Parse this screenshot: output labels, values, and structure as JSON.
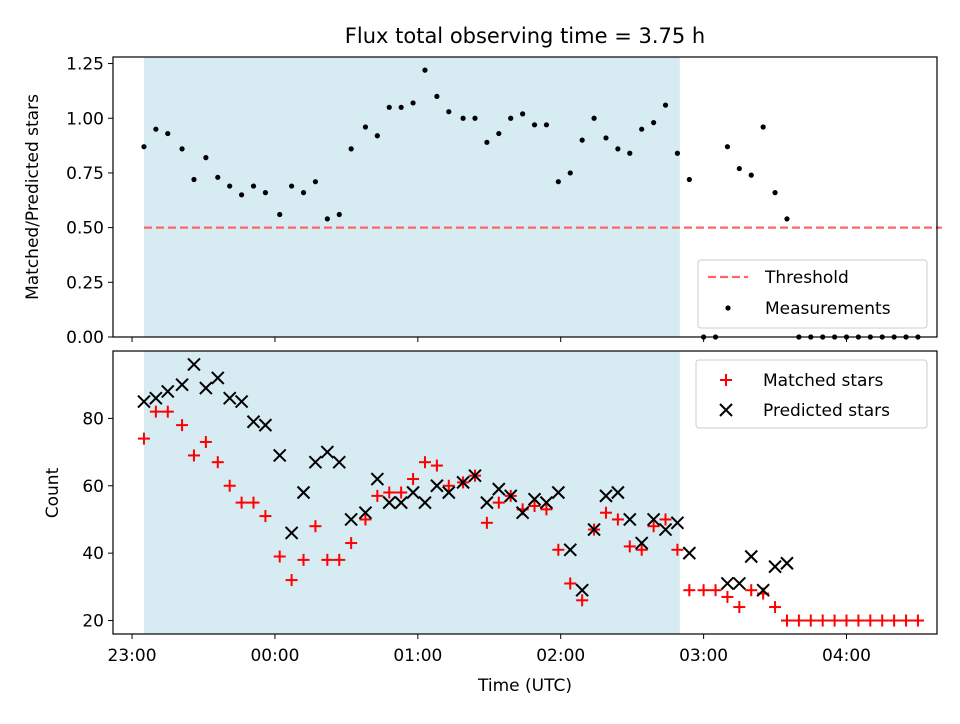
{
  "title": "Flux total observing time = 3.75 h",
  "xlabel": "Time (UTC)",
  "x_ticks": [
    "23:00",
    "00:00",
    "01:00",
    "02:00",
    "03:00",
    "04:00"
  ],
  "colors": {
    "shade": "#ADD8E6",
    "threshold": "#ff6666",
    "matched": "#ff0000",
    "measurement": "#000000",
    "predicted": "#000000"
  },
  "chart_data": [
    {
      "type": "scatter",
      "ylabel": "Matched/Predicted stars",
      "xlim": [
        "22:52",
        "04:38"
      ],
      "ylim": [
        0,
        1.28
      ],
      "y_ticks": [
        "0.00",
        "0.25",
        "0.50",
        "0.75",
        "1.00",
        "1.25"
      ],
      "shaded_interval": [
        "23:05",
        "02:50"
      ],
      "threshold": {
        "name": "Threshold",
        "value": 0.5,
        "x_range": [
          "23:05",
          "04:40"
        ]
      },
      "legend": {
        "position": "lower-right",
        "entries": [
          "Threshold",
          "Measurements"
        ]
      },
      "series": [
        {
          "name": "Measurements",
          "points": [
            [
              "23:05",
              0.87
            ],
            [
              "23:10",
              0.95
            ],
            [
              "23:15",
              0.93
            ],
            [
              "23:21",
              0.86
            ],
            [
              "23:26",
              0.72
            ],
            [
              "23:31",
              0.82
            ],
            [
              "23:36",
              0.73
            ],
            [
              "23:41",
              0.69
            ],
            [
              "23:46",
              0.65
            ],
            [
              "23:51",
              0.69
            ],
            [
              "23:56",
              0.66
            ],
            [
              "00:02",
              0.56
            ],
            [
              "00:07",
              0.69
            ],
            [
              "00:12",
              0.66
            ],
            [
              "00:17",
              0.71
            ],
            [
              "00:22",
              0.54
            ],
            [
              "00:27",
              0.56
            ],
            [
              "00:32",
              0.86
            ],
            [
              "00:38",
              0.96
            ],
            [
              "00:43",
              0.92
            ],
            [
              "00:48",
              1.05
            ],
            [
              "00:53",
              1.05
            ],
            [
              "00:58",
              1.07
            ],
            [
              "01:03",
              1.22
            ],
            [
              "01:08",
              1.1
            ],
            [
              "01:13",
              1.03
            ],
            [
              "01:19",
              1.0
            ],
            [
              "01:24",
              1.0
            ],
            [
              "01:29",
              0.89
            ],
            [
              "01:34",
              0.93
            ],
            [
              "01:39",
              1.0
            ],
            [
              "01:44",
              1.02
            ],
            [
              "01:49",
              0.97
            ],
            [
              "01:54",
              0.97
            ],
            [
              "01:59",
              0.71
            ],
            [
              "02:04",
              0.75
            ],
            [
              "02:09",
              0.9
            ],
            [
              "02:14",
              1.0
            ],
            [
              "02:19",
              0.91
            ],
            [
              "02:24",
              0.86
            ],
            [
              "02:29",
              0.84
            ],
            [
              "02:34",
              0.95
            ],
            [
              "02:39",
              0.98
            ],
            [
              "02:44",
              1.06
            ],
            [
              "02:49",
              0.84
            ],
            [
              "02:54",
              0.72
            ],
            [
              "03:00",
              0.0
            ],
            [
              "03:05",
              0.0
            ],
            [
              "03:10",
              0.87
            ],
            [
              "03:15",
              0.77
            ],
            [
              "03:20",
              0.74
            ],
            [
              "03:25",
              0.96
            ],
            [
              "03:30",
              0.66
            ],
            [
              "03:35",
              0.54
            ],
            [
              "03:40",
              0.0
            ],
            [
              "03:45",
              0.0
            ],
            [
              "03:50",
              0.0
            ],
            [
              "03:55",
              0.0
            ],
            [
              "04:00",
              0.0
            ],
            [
              "04:05",
              0.0
            ],
            [
              "04:10",
              0.0
            ],
            [
              "04:15",
              0.0
            ],
            [
              "04:20",
              0.0
            ],
            [
              "04:25",
              0.0
            ],
            [
              "04:30",
              0.0
            ]
          ]
        }
      ]
    },
    {
      "type": "scatter",
      "ylabel": "Count",
      "xlim": [
        "22:52",
        "04:38"
      ],
      "ylim": [
        16,
        100
      ],
      "y_ticks": [
        "20",
        "40",
        "60",
        "80"
      ],
      "shaded_interval": [
        "23:05",
        "02:50"
      ],
      "legend": {
        "position": "top-right",
        "entries": [
          "Matched stars",
          "Predicted stars"
        ]
      },
      "series": [
        {
          "name": "Matched stars",
          "points": [
            [
              "23:05",
              74
            ],
            [
              "23:10",
              82
            ],
            [
              "23:15",
              82
            ],
            [
              "23:21",
              78
            ],
            [
              "23:26",
              69
            ],
            [
              "23:31",
              73
            ],
            [
              "23:36",
              67
            ],
            [
              "23:41",
              60
            ],
            [
              "23:46",
              55
            ],
            [
              "23:51",
              55
            ],
            [
              "23:56",
              51
            ],
            [
              "00:02",
              39
            ],
            [
              "00:07",
              32
            ],
            [
              "00:12",
              38
            ],
            [
              "00:17",
              48
            ],
            [
              "00:22",
              38
            ],
            [
              "00:27",
              38
            ],
            [
              "00:32",
              43
            ],
            [
              "00:38",
              50
            ],
            [
              "00:43",
              57
            ],
            [
              "00:48",
              58
            ],
            [
              "00:53",
              58
            ],
            [
              "00:58",
              62
            ],
            [
              "01:03",
              67
            ],
            [
              "01:08",
              66
            ],
            [
              "01:13",
              60
            ],
            [
              "01:19",
              61
            ],
            [
              "01:24",
              63
            ],
            [
              "01:29",
              49
            ],
            [
              "01:34",
              55
            ],
            [
              "01:39",
              57
            ],
            [
              "01:44",
              53
            ],
            [
              "01:49",
              54
            ],
            [
              "01:54",
              53
            ],
            [
              "01:59",
              41
            ],
            [
              "02:04",
              31
            ],
            [
              "02:09",
              26
            ],
            [
              "02:14",
              47
            ],
            [
              "02:19",
              52
            ],
            [
              "02:24",
              50
            ],
            [
              "02:29",
              42
            ],
            [
              "02:34",
              41
            ],
            [
              "02:39",
              48
            ],
            [
              "02:44",
              50
            ],
            [
              "02:49",
              41
            ],
            [
              "02:54",
              29
            ],
            [
              "03:00",
              29
            ],
            [
              "03:05",
              29
            ],
            [
              "03:10",
              27
            ],
            [
              "03:15",
              24
            ],
            [
              "03:20",
              29
            ],
            [
              "03:25",
              28
            ],
            [
              "03:30",
              24
            ],
            [
              "03:35",
              20
            ],
            [
              "03:40",
              20
            ],
            [
              "03:45",
              20
            ],
            [
              "03:50",
              20
            ],
            [
              "03:55",
              20
            ],
            [
              "04:00",
              20
            ],
            [
              "04:05",
              20
            ],
            [
              "04:10",
              20
            ],
            [
              "04:15",
              20
            ],
            [
              "04:20",
              20
            ],
            [
              "04:25",
              20
            ],
            [
              "04:30",
              20
            ]
          ]
        },
        {
          "name": "Predicted stars",
          "points": [
            [
              "23:05",
              85
            ],
            [
              "23:10",
              86
            ],
            [
              "23:15",
              88
            ],
            [
              "23:21",
              90
            ],
            [
              "23:26",
              96
            ],
            [
              "23:31",
              89
            ],
            [
              "23:36",
              92
            ],
            [
              "23:41",
              86
            ],
            [
              "23:46",
              85
            ],
            [
              "23:51",
              79
            ],
            [
              "23:56",
              78
            ],
            [
              "00:02",
              69
            ],
            [
              "00:07",
              46
            ],
            [
              "00:12",
              58
            ],
            [
              "00:17",
              67
            ],
            [
              "00:22",
              70
            ],
            [
              "00:27",
              67
            ],
            [
              "00:32",
              50
            ],
            [
              "00:38",
              52
            ],
            [
              "00:43",
              62
            ],
            [
              "00:48",
              55
            ],
            [
              "00:53",
              55
            ],
            [
              "00:58",
              58
            ],
            [
              "01:03",
              55
            ],
            [
              "01:08",
              60
            ],
            [
              "01:13",
              58
            ],
            [
              "01:19",
              61
            ],
            [
              "01:24",
              63
            ],
            [
              "01:29",
              55
            ],
            [
              "01:34",
              59
            ],
            [
              "01:39",
              57
            ],
            [
              "01:44",
              52
            ],
            [
              "01:49",
              56
            ],
            [
              "01:54",
              55
            ],
            [
              "01:59",
              58
            ],
            [
              "02:04",
              41
            ],
            [
              "02:09",
              29
            ],
            [
              "02:14",
              47
            ],
            [
              "02:19",
              57
            ],
            [
              "02:24",
              58
            ],
            [
              "02:29",
              50
            ],
            [
              "02:34",
              43
            ],
            [
              "02:39",
              50
            ],
            [
              "02:44",
              47
            ],
            [
              "02:49",
              49
            ],
            [
              "02:54",
              40
            ],
            [
              "03:10",
              31
            ],
            [
              "03:15",
              31
            ],
            [
              "03:20",
              39
            ],
            [
              "03:25",
              29
            ],
            [
              "03:30",
              36
            ],
            [
              "03:35",
              37
            ]
          ]
        }
      ]
    }
  ]
}
